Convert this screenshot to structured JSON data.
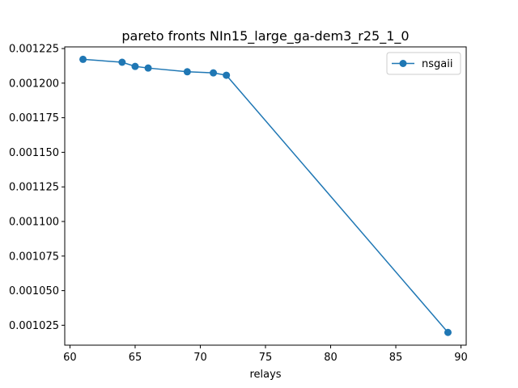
{
  "chart_data": {
    "type": "line",
    "title": "pareto fronts NIn15_large_ga-dem3_r25_1_0",
    "xlabel": "relays",
    "ylabel": "",
    "xlim": [
      59.6,
      90.4
    ],
    "ylim": [
      0.0010106,
      0.0012262
    ],
    "x_ticks": [
      60,
      65,
      70,
      75,
      80,
      85,
      90
    ],
    "x_tick_labels": [
      "60",
      "65",
      "70",
      "75",
      "80",
      "85",
      "90"
    ],
    "y_ticks": [
      0.001025,
      0.00105,
      0.001075,
      0.0011,
      0.001125,
      0.00115,
      0.001175,
      0.0012,
      0.001225
    ],
    "y_tick_labels": [
      "0.001025",
      "0.001050",
      "0.001075",
      "0.001100",
      "0.001125",
      "0.001150",
      "0.001175",
      "0.001200",
      "0.001225"
    ],
    "grid": false,
    "legend_position": "top-right",
    "series": [
      {
        "name": "nsgaii",
        "color": "#1f77b4",
        "marker": "circle",
        "x": [
          61,
          64,
          65,
          66,
          69,
          71,
          72,
          89
        ],
        "y": [
          0.0012172,
          0.0012151,
          0.0012121,
          0.0012109,
          0.0012082,
          0.0012074,
          0.0012057,
          0.0010198
        ]
      }
    ]
  }
}
